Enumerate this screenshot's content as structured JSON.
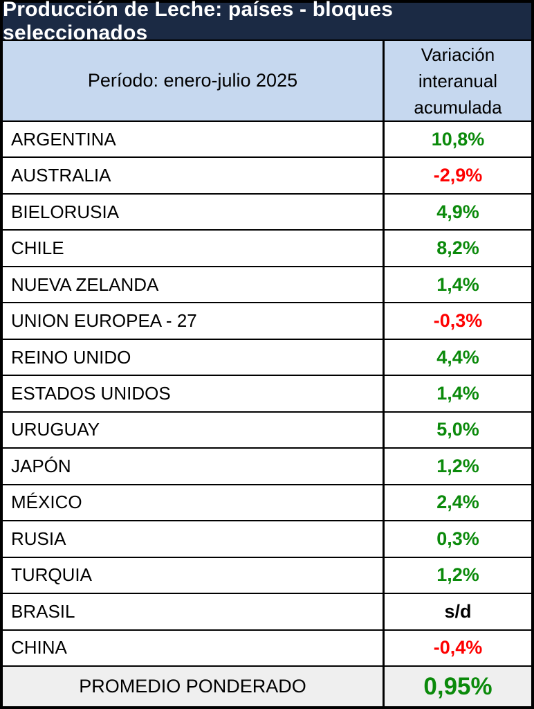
{
  "title": "Producción de Leche: países - bloques seleccionados",
  "header": {
    "period_label": "Período: enero-julio 2025",
    "value_col_lines": [
      "Variación",
      "interanual",
      "acumulada"
    ]
  },
  "rows": [
    {
      "country": "ARGENTINA",
      "value": "10,8%",
      "status": "positive"
    },
    {
      "country": "AUSTRALIA",
      "value": "-2,9%",
      "status": "negative"
    },
    {
      "country": "BIELORUSIA",
      "value": "4,9%",
      "status": "positive"
    },
    {
      "country": "CHILE",
      "value": "8,2%",
      "status": "positive"
    },
    {
      "country": "NUEVA ZELANDA",
      "value": "1,4%",
      "status": "positive"
    },
    {
      "country": "UNION EUROPEA - 27",
      "value": "-0,3%",
      "status": "negative"
    },
    {
      "country": "REINO UNIDO",
      "value": "4,4%",
      "status": "positive"
    },
    {
      "country": "ESTADOS UNIDOS",
      "value": "1,4%",
      "status": "positive"
    },
    {
      "country": "URUGUAY",
      "value": "5,0%",
      "status": "positive"
    },
    {
      "country": "JAPÓN",
      "value": "1,2%",
      "status": "positive"
    },
    {
      "country": "MÉXICO",
      "value": "2,4%",
      "status": "positive"
    },
    {
      "country": "RUSIA",
      "value": "0,3%",
      "status": "positive"
    },
    {
      "country": "TURQUIA",
      "value": "1,2%",
      "status": "positive"
    },
    {
      "country": "BRASIL",
      "value": "s/d",
      "status": "neutral"
    },
    {
      "country": "CHINA",
      "value": "-0,4%",
      "status": "negative"
    }
  ],
  "footer": {
    "label": "PROMEDIO PONDERADO",
    "value": "0,95%",
    "status": "positive"
  },
  "colors": {
    "title_bg": "#1B2A44",
    "header_bg": "#C6D8EF",
    "footer_bg": "#EFEFEF",
    "positive": "#0B8A0B",
    "negative": "#FE0000",
    "neutral": "#000000"
  }
}
